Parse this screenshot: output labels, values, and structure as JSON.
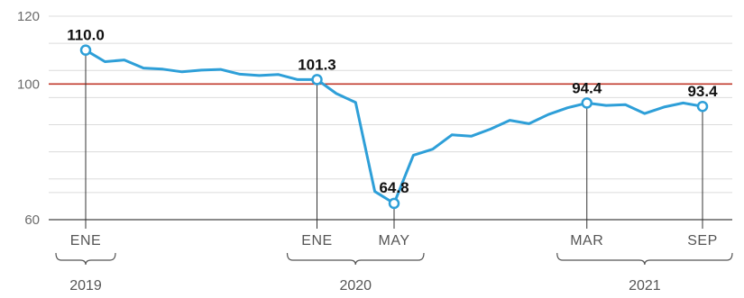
{
  "chart_data": {
    "type": "line",
    "ylim": [
      60,
      120
    ],
    "yticks": [
      {
        "value": 120,
        "label": "120"
      },
      {
        "value": 100,
        "label": "100"
      },
      {
        "value": 60,
        "label": "60"
      }
    ],
    "gridlines": [
      120,
      112,
      104,
      100,
      96,
      88,
      80,
      72,
      68,
      60
    ],
    "reference_line": {
      "value": 100,
      "color": "#c0392b"
    },
    "series": [
      {
        "color": "#2e9fd8",
        "x": [
          "2019-01",
          "2019-02",
          "2019-03",
          "2019-04",
          "2019-05",
          "2019-06",
          "2019-07",
          "2019-08",
          "2019-09",
          "2019-10",
          "2019-11",
          "2019-12",
          "2020-01",
          "2020-02",
          "2020-03",
          "2020-04",
          "2020-05",
          "2020-06",
          "2020-07",
          "2020-08",
          "2020-09",
          "2020-10",
          "2020-11",
          "2020-12",
          "2021-01",
          "2021-02",
          "2021-03",
          "2021-04",
          "2021-05",
          "2021-06",
          "2021-07",
          "2021-08",
          "2021-09"
        ],
        "values": [
          110.0,
          106.6,
          107.1,
          104.7,
          104.4,
          103.6,
          104.1,
          104.3,
          102.9,
          102.5,
          102.8,
          101.3,
          101.3,
          97.2,
          94.6,
          68.3,
          64.8,
          79.0,
          80.8,
          85.0,
          84.6,
          86.7,
          89.3,
          88.3,
          91.0,
          93.0,
          94.4,
          93.7,
          93.9,
          91.3,
          93.2,
          94.4,
          93.4
        ]
      }
    ],
    "annotations": [
      {
        "x": "2019-01",
        "value": 110.0,
        "label": "110.0"
      },
      {
        "x": "2020-01",
        "value": 101.3,
        "label": "101.3"
      },
      {
        "x": "2020-05",
        "value": 64.8,
        "label": "64.8"
      },
      {
        "x": "2021-03",
        "value": 94.4,
        "label": "94.4"
      },
      {
        "x": "2021-09",
        "value": 93.4,
        "label": "93.4"
      }
    ],
    "xticks": [
      {
        "x": "2019-01",
        "label": "ENE"
      },
      {
        "x": "2020-01",
        "label": "ENE"
      },
      {
        "x": "2020-05",
        "label": "MAY"
      },
      {
        "x": "2021-03",
        "label": "MAR"
      },
      {
        "x": "2021-09",
        "label": "SEP"
      }
    ],
    "year_groups": [
      {
        "label": "2019",
        "from": "2019-01",
        "to": "2019-01"
      },
      {
        "label": "2020",
        "from": "2020-01",
        "to": "2020-05"
      },
      {
        "label": "2021",
        "from": "2021-03",
        "to": "2021-09"
      }
    ],
    "grid": true,
    "legend": "none"
  }
}
